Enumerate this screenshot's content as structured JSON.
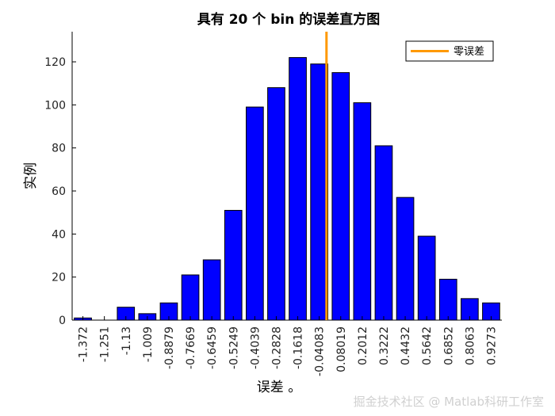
{
  "chart_data": {
    "type": "bar",
    "title": "具有 20 个 bin 的误差直方图",
    "xlabel": "误差 。",
    "ylabel": "实例",
    "categories": [
      "-1.372",
      "-1.251",
      "-1.13",
      "-1.009",
      "-0.8879",
      "-0.7669",
      "-0.6459",
      "-0.5249",
      "-0.4039",
      "-0.2828",
      "-0.1618",
      "-0.04083",
      "0.08019",
      "0.2012",
      "0.3222",
      "0.4432",
      "0.5642",
      "0.6852",
      "0.8063",
      "0.9273"
    ],
    "values": [
      1,
      0,
      6,
      3,
      8,
      21,
      28,
      51,
      99,
      108,
      122,
      119,
      115,
      101,
      81,
      57,
      39,
      19,
      10,
      8
    ],
    "ylim": [
      0,
      134
    ],
    "yticks": [
      0,
      20,
      40,
      60,
      80,
      100,
      120
    ],
    "zero_line_x": 0,
    "legend": {
      "label": "零误差",
      "placement": "top-right"
    },
    "colors": {
      "bar": "#0000ff",
      "bar_edge": "#000000",
      "zero_line": "#ff9900"
    },
    "grid": false
  },
  "watermark": "掘金技术社区 @ Matlab科研工作室"
}
